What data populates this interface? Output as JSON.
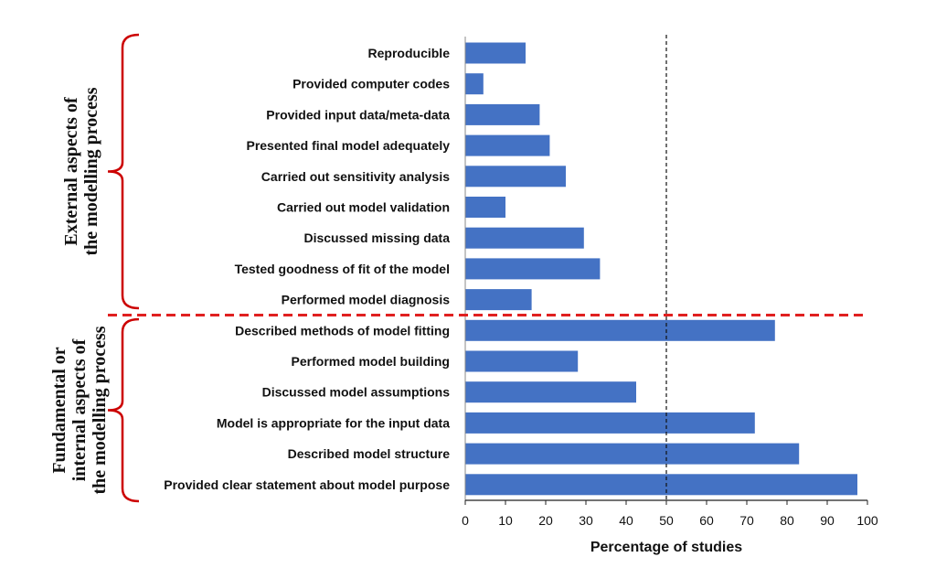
{
  "chart_data": {
    "type": "bar",
    "orientation": "horizontal",
    "categories": [
      "Reproducible",
      "Provided computer codes",
      "Provided input data/meta-data",
      "Presented final model adequately",
      "Carried out sensitivity analysis",
      "Carried out model validation",
      "Discussed missing data",
      "Tested goodness of fit of the model",
      "Performed model diagnosis",
      "Described methods of model fitting",
      "Performed model building",
      "Discussed model assumptions",
      "Model is appropriate for the input data",
      "Described model structure",
      "Provided clear statement about model purpose"
    ],
    "values": [
      15,
      4.5,
      18.5,
      21,
      25,
      10,
      29.5,
      33.5,
      16.5,
      77,
      28,
      42.5,
      72,
      83,
      97.5
    ],
    "xlabel": "Percentage of studies",
    "xlim": [
      0,
      100
    ],
    "xticks": [
      "0",
      "10",
      "20",
      "30",
      "40",
      "50",
      "60",
      "70",
      "80",
      "90",
      "100"
    ],
    "reference_line_x": 50,
    "bar_color": "#4472C4",
    "groups": [
      {
        "label_lines": [
          "External aspects of",
          "the modelling process"
        ],
        "first": 0,
        "last": 8
      },
      {
        "label_lines": [
          "Fundamental or",
          "internal aspects of",
          "the modelling process"
        ],
        "first": 9,
        "last": 14
      }
    ],
    "group_separator_after": 8,
    "bracket_color": "#CC0000",
    "separator_color": "#E02020"
  }
}
